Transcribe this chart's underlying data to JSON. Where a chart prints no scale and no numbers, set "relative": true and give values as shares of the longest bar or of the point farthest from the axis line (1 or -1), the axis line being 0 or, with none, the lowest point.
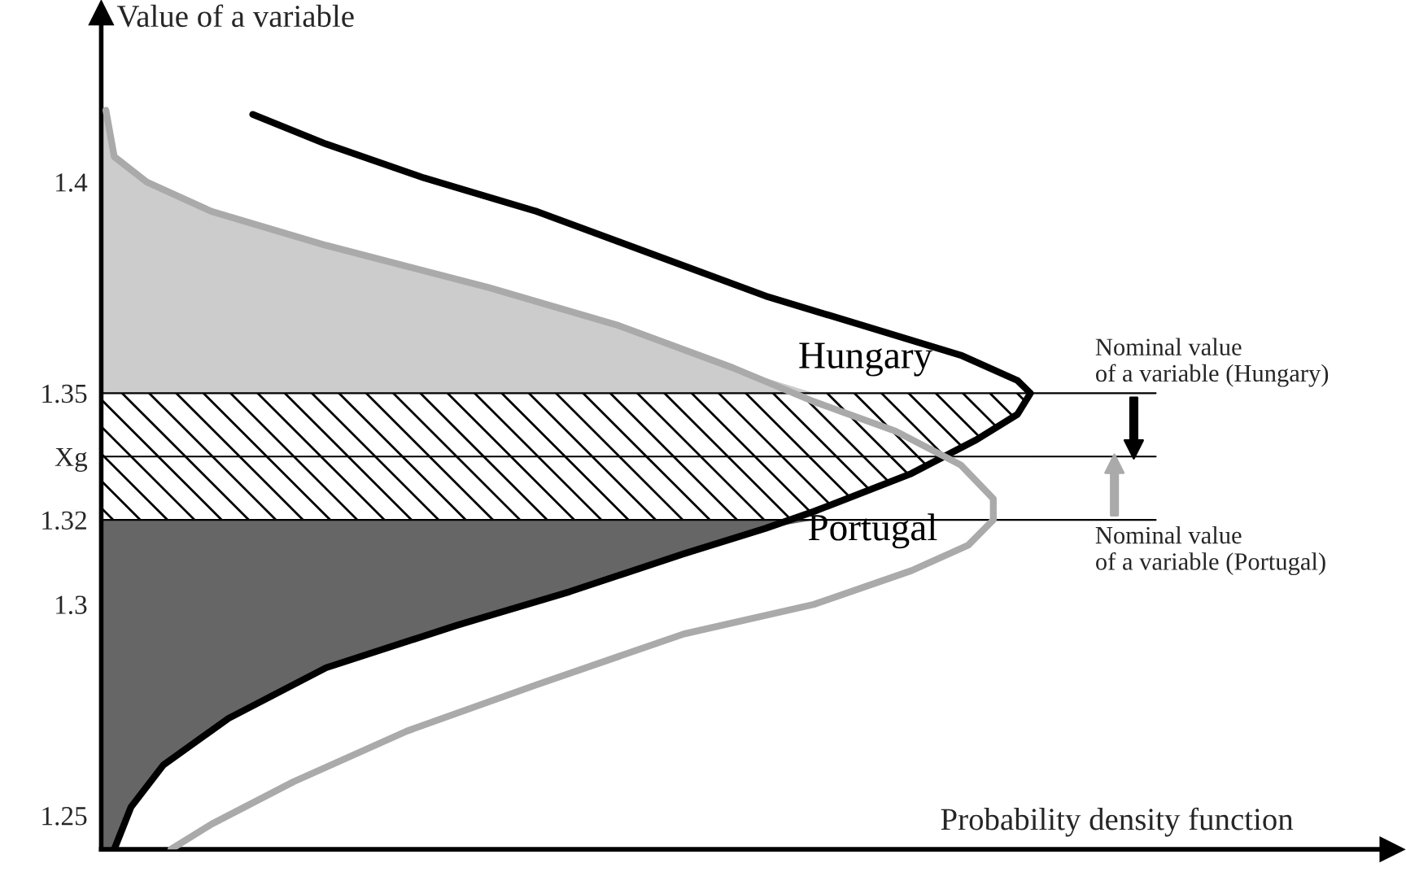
{
  "chart_data": {
    "type": "line",
    "orientation": "horizontal",
    "xlabel": "Probability density function",
    "ylabel": "Value of a variable",
    "relative": true,
    "ylim": [
      1.242,
      1.44
    ],
    "yticks": [
      1.25,
      1.3,
      1.32,
      {
        "value": 1.335,
        "label": "Xg"
      },
      1.35,
      1.4
    ],
    "series": [
      {
        "type": "area",
        "color": "#cccccc",
        "values": [
          0.005,
          0.014,
          0.049,
          0.119,
          0.242,
          0.417,
          0.557,
          0.68,
          0.767
        ],
        "x": [
          1.417,
          1.406,
          1.4,
          1.393,
          1.385,
          1.375,
          1.366,
          1.356,
          1.35
        ]
      },
      {
        "type": "area",
        "color": "#666666",
        "values": [
          0.767,
          0.715,
          0.627,
          0.504,
          0.382,
          0.242,
          0.137,
          0.067,
          0.032,
          0.014
        ],
        "x": [
          1.32,
          1.318,
          1.312,
          1.303,
          1.295,
          1.285,
          1.273,
          1.262,
          1.252,
          1.242
        ]
      },
      {
        "name": "Hungary",
        "color": "#000000",
        "values": [
          0.163,
          0.242,
          0.347,
          0.469,
          0.592,
          0.715,
          0.82,
          0.925,
          0.986,
          1,
          0.986,
          0.942,
          0.872,
          0.767,
          0.715,
          0.627,
          0.504,
          0.382,
          0.242,
          0.137,
          0.067,
          0.032,
          0.014
        ],
        "x": [
          1.416,
          1.409,
          1.401,
          1.393,
          1.383,
          1.373,
          1.366,
          1.359,
          1.353,
          1.35,
          1.345,
          1.339,
          1.331,
          1.322,
          1.318,
          1.312,
          1.303,
          1.295,
          1.285,
          1.273,
          1.262,
          1.252,
          1.242
        ]
      },
      {
        "name": "Portugal",
        "color": "#aaaaaa",
        "values": [
          0.005,
          0.014,
          0.049,
          0.119,
          0.242,
          0.417,
          0.557,
          0.68,
          0.767,
          0.855,
          0.925,
          0.96,
          0.96,
          0.933,
          0.872,
          0.767,
          0.627,
          0.469,
          0.329,
          0.207,
          0.119,
          0.075
        ],
        "x": [
          1.417,
          1.406,
          1.4,
          1.393,
          1.385,
          1.375,
          1.366,
          1.356,
          1.348,
          1.341,
          1.333,
          1.325,
          1.32,
          1.314,
          1.308,
          1.3,
          1.293,
          1.281,
          1.27,
          1.258,
          1.248,
          1.242
        ]
      }
    ],
    "bands": [
      {
        "axis": "y",
        "from": 1.32,
        "to": 1.35,
        "label": null
      }
    ],
    "ref_lines": [
      {
        "axis": "y",
        "value": 1.35,
        "label": "Nominal value\nof a variable (Hungary)"
      },
      {
        "axis": "y",
        "value": 1.335,
        "label": null
      },
      {
        "axis": "y",
        "value": 1.32,
        "label": "Nominal value\nof a variable (Portugal)"
      }
    ]
  }
}
